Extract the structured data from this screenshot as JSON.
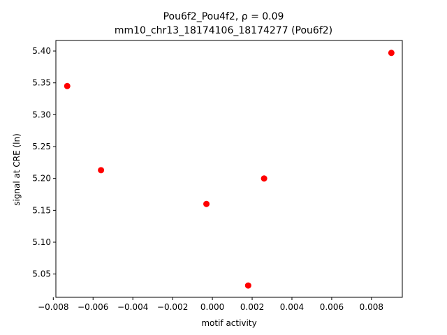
{
  "chart_data": {
    "type": "scatter",
    "title_line1": "Pou6f2_Pou4f2, ρ = 0.09",
    "title_line2": "mm10_chr13_18174106_18174277 (Pou6f2)",
    "xlabel": "motif activity",
    "ylabel": "signal at CRE (ln)",
    "xlim": [
      -0.00787,
      0.00955
    ],
    "ylim": [
      5.0135,
      5.4165
    ],
    "x_ticks": [
      -0.008,
      -0.006,
      -0.004,
      -0.002,
      0.0,
      0.002,
      0.004,
      0.006,
      0.008
    ],
    "x_tick_labels": [
      "−0.008",
      "−0.006",
      "−0.004",
      "−0.002",
      "0.000",
      "0.002",
      "0.004",
      "0.006",
      "0.008"
    ],
    "y_ticks": [
      5.05,
      5.1,
      5.15,
      5.2,
      5.25,
      5.3,
      5.35,
      5.4
    ],
    "y_tick_labels": [
      "5.05",
      "5.10",
      "5.15",
      "5.20",
      "5.25",
      "5.30",
      "5.35",
      "5.40"
    ],
    "point_color": "#ff0000",
    "grid": false,
    "points": [
      {
        "x": -0.0073,
        "y": 5.345
      },
      {
        "x": -0.0056,
        "y": 5.213
      },
      {
        "x": -0.0003,
        "y": 5.16
      },
      {
        "x": 0.0018,
        "y": 5.032
      },
      {
        "x": 0.0026,
        "y": 5.2
      },
      {
        "x": 0.009,
        "y": 5.397
      }
    ]
  }
}
